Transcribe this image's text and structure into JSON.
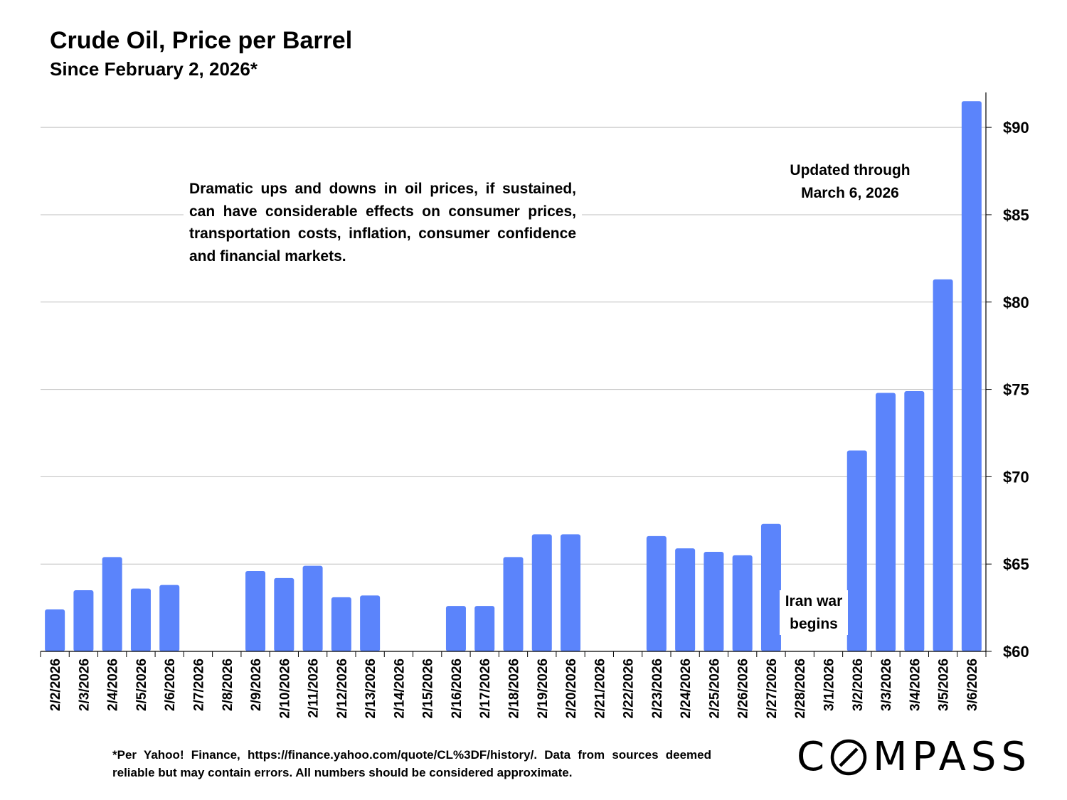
{
  "title": "Crude Oil, Price per Barrel",
  "subtitle": "Since February 2, 2026*",
  "annotations": {
    "main": "Dramatic ups and downs in oil prices, if sustained, can have considerable effects on consumer prices, transportation costs, inflation, consumer confidence and financial markets.",
    "updated_line1": "Updated through",
    "updated_line2": "March 6, 2026",
    "iran_line1": "Iran war",
    "iran_line2": "begins"
  },
  "footnote": "*Per Yahoo! Finance, https://finance.yahoo.com/quote/CL%3DF/history/. Data from sources deemed reliable but may contain errors. All numbers should be considered approximate.",
  "logo": {
    "before": "C",
    "after": "MPASS"
  },
  "colors": {
    "bar": "#5b84fb",
    "grid": "#bfbfbf",
    "axis": "#000000"
  },
  "chart_data": {
    "type": "bar",
    "title": "Crude Oil, Price per Barrel",
    "subtitle": "Since February 2, 2026*",
    "xlabel": "",
    "ylabel": "",
    "ylim": [
      60,
      92
    ],
    "yticks": [
      60,
      65,
      70,
      75,
      80,
      85,
      90
    ],
    "ytick_labels": [
      "$60",
      "$65",
      "$70",
      "$75",
      "$80",
      "$85",
      "$90"
    ],
    "y_axis_side": "right",
    "grid": true,
    "legend": "none",
    "categories": [
      "2/2/2026",
      "2/3/2026",
      "2/4/2026",
      "2/5/2026",
      "2/6/2026",
      "2/7/2026",
      "2/8/2026",
      "2/9/2026",
      "2/10/2026",
      "2/11/2026",
      "2/12/2026",
      "2/13/2026",
      "2/14/2026",
      "2/15/2026",
      "2/16/2026",
      "2/17/2026",
      "2/18/2026",
      "2/19/2026",
      "2/20/2026",
      "2/21/2026",
      "2/22/2026",
      "2/23/2026",
      "2/24/2026",
      "2/25/2026",
      "2/26/2026",
      "2/27/2026",
      "2/28/2026",
      "3/1/2026",
      "3/2/2026",
      "3/3/2026",
      "3/4/2026",
      "3/5/2026",
      "3/6/2026"
    ],
    "values": [
      62.4,
      63.5,
      65.4,
      63.6,
      63.8,
      null,
      null,
      64.6,
      64.2,
      64.9,
      63.1,
      63.2,
      null,
      null,
      62.6,
      62.6,
      65.4,
      66.7,
      66.7,
      null,
      null,
      66.6,
      65.9,
      65.7,
      65.5,
      67.3,
      null,
      null,
      71.5,
      74.8,
      74.9,
      81.3,
      91.5
    ]
  }
}
